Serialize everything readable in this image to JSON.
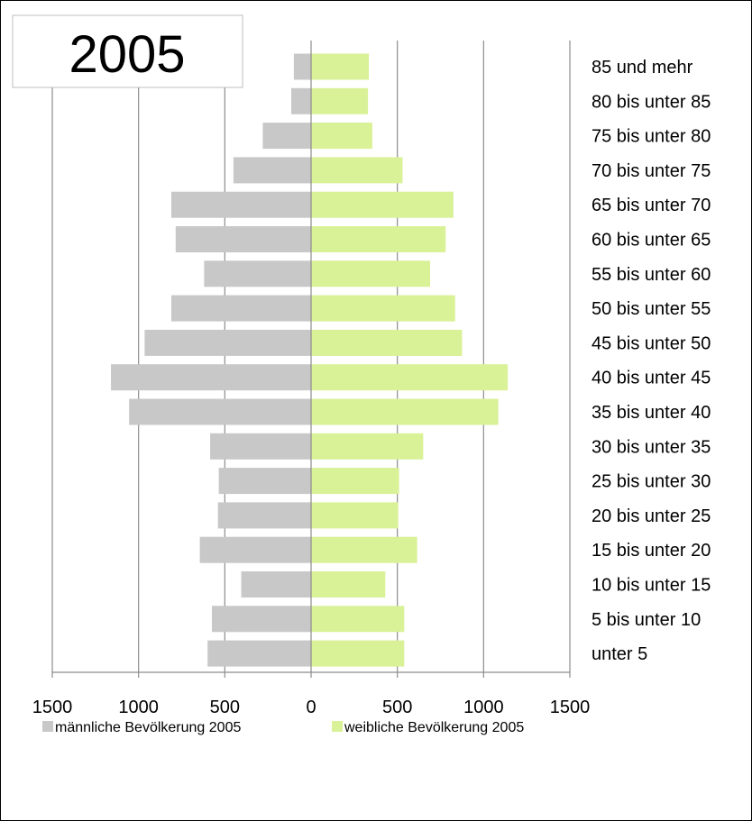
{
  "chart_data": {
    "type": "bar",
    "orientation": "horizontal",
    "title": "2005",
    "categories": [
      "unter 5",
      "5 bis unter 10",
      "10 bis unter 15",
      "15 bis unter 20",
      "20 bis unter 25",
      "25 bis unter 30",
      "30 bis unter 35",
      "35 bis unter 40",
      "40 bis unter 45",
      "45 bis unter 50",
      "50 bis unter 55",
      "55 bis unter 60",
      "60 bis unter 65",
      "65 bis unter 70",
      "70 bis unter 75",
      "75 bis unter 80",
      "80 bis unter 85",
      "85 und mehr"
    ],
    "series": [
      {
        "name": "männliche Bevölkerung 2005",
        "values": [
          600,
          575,
          405,
          645,
          540,
          535,
          585,
          1055,
          1160,
          965,
          810,
          620,
          785,
          810,
          450,
          280,
          115,
          100
        ],
        "color": "#c8c8c8",
        "direction": "left"
      },
      {
        "name": "weibliche Bevölkerung 2005",
        "values": [
          540,
          540,
          430,
          615,
          505,
          510,
          650,
          1085,
          1140,
          875,
          835,
          690,
          780,
          825,
          530,
          355,
          330,
          335
        ],
        "color": "#d9f197",
        "direction": "right"
      }
    ],
    "xlim": [
      -1500,
      1500
    ],
    "xticks": [
      -1500,
      -1000,
      -500,
      0,
      500,
      1000,
      1500
    ],
    "xtick_labels": [
      "1500",
      "1000",
      "500",
      "0",
      "500",
      "1000",
      "1500"
    ],
    "xlabel": "",
    "ylabel": "",
    "grid": "vertical",
    "legend_position": "bottom"
  }
}
